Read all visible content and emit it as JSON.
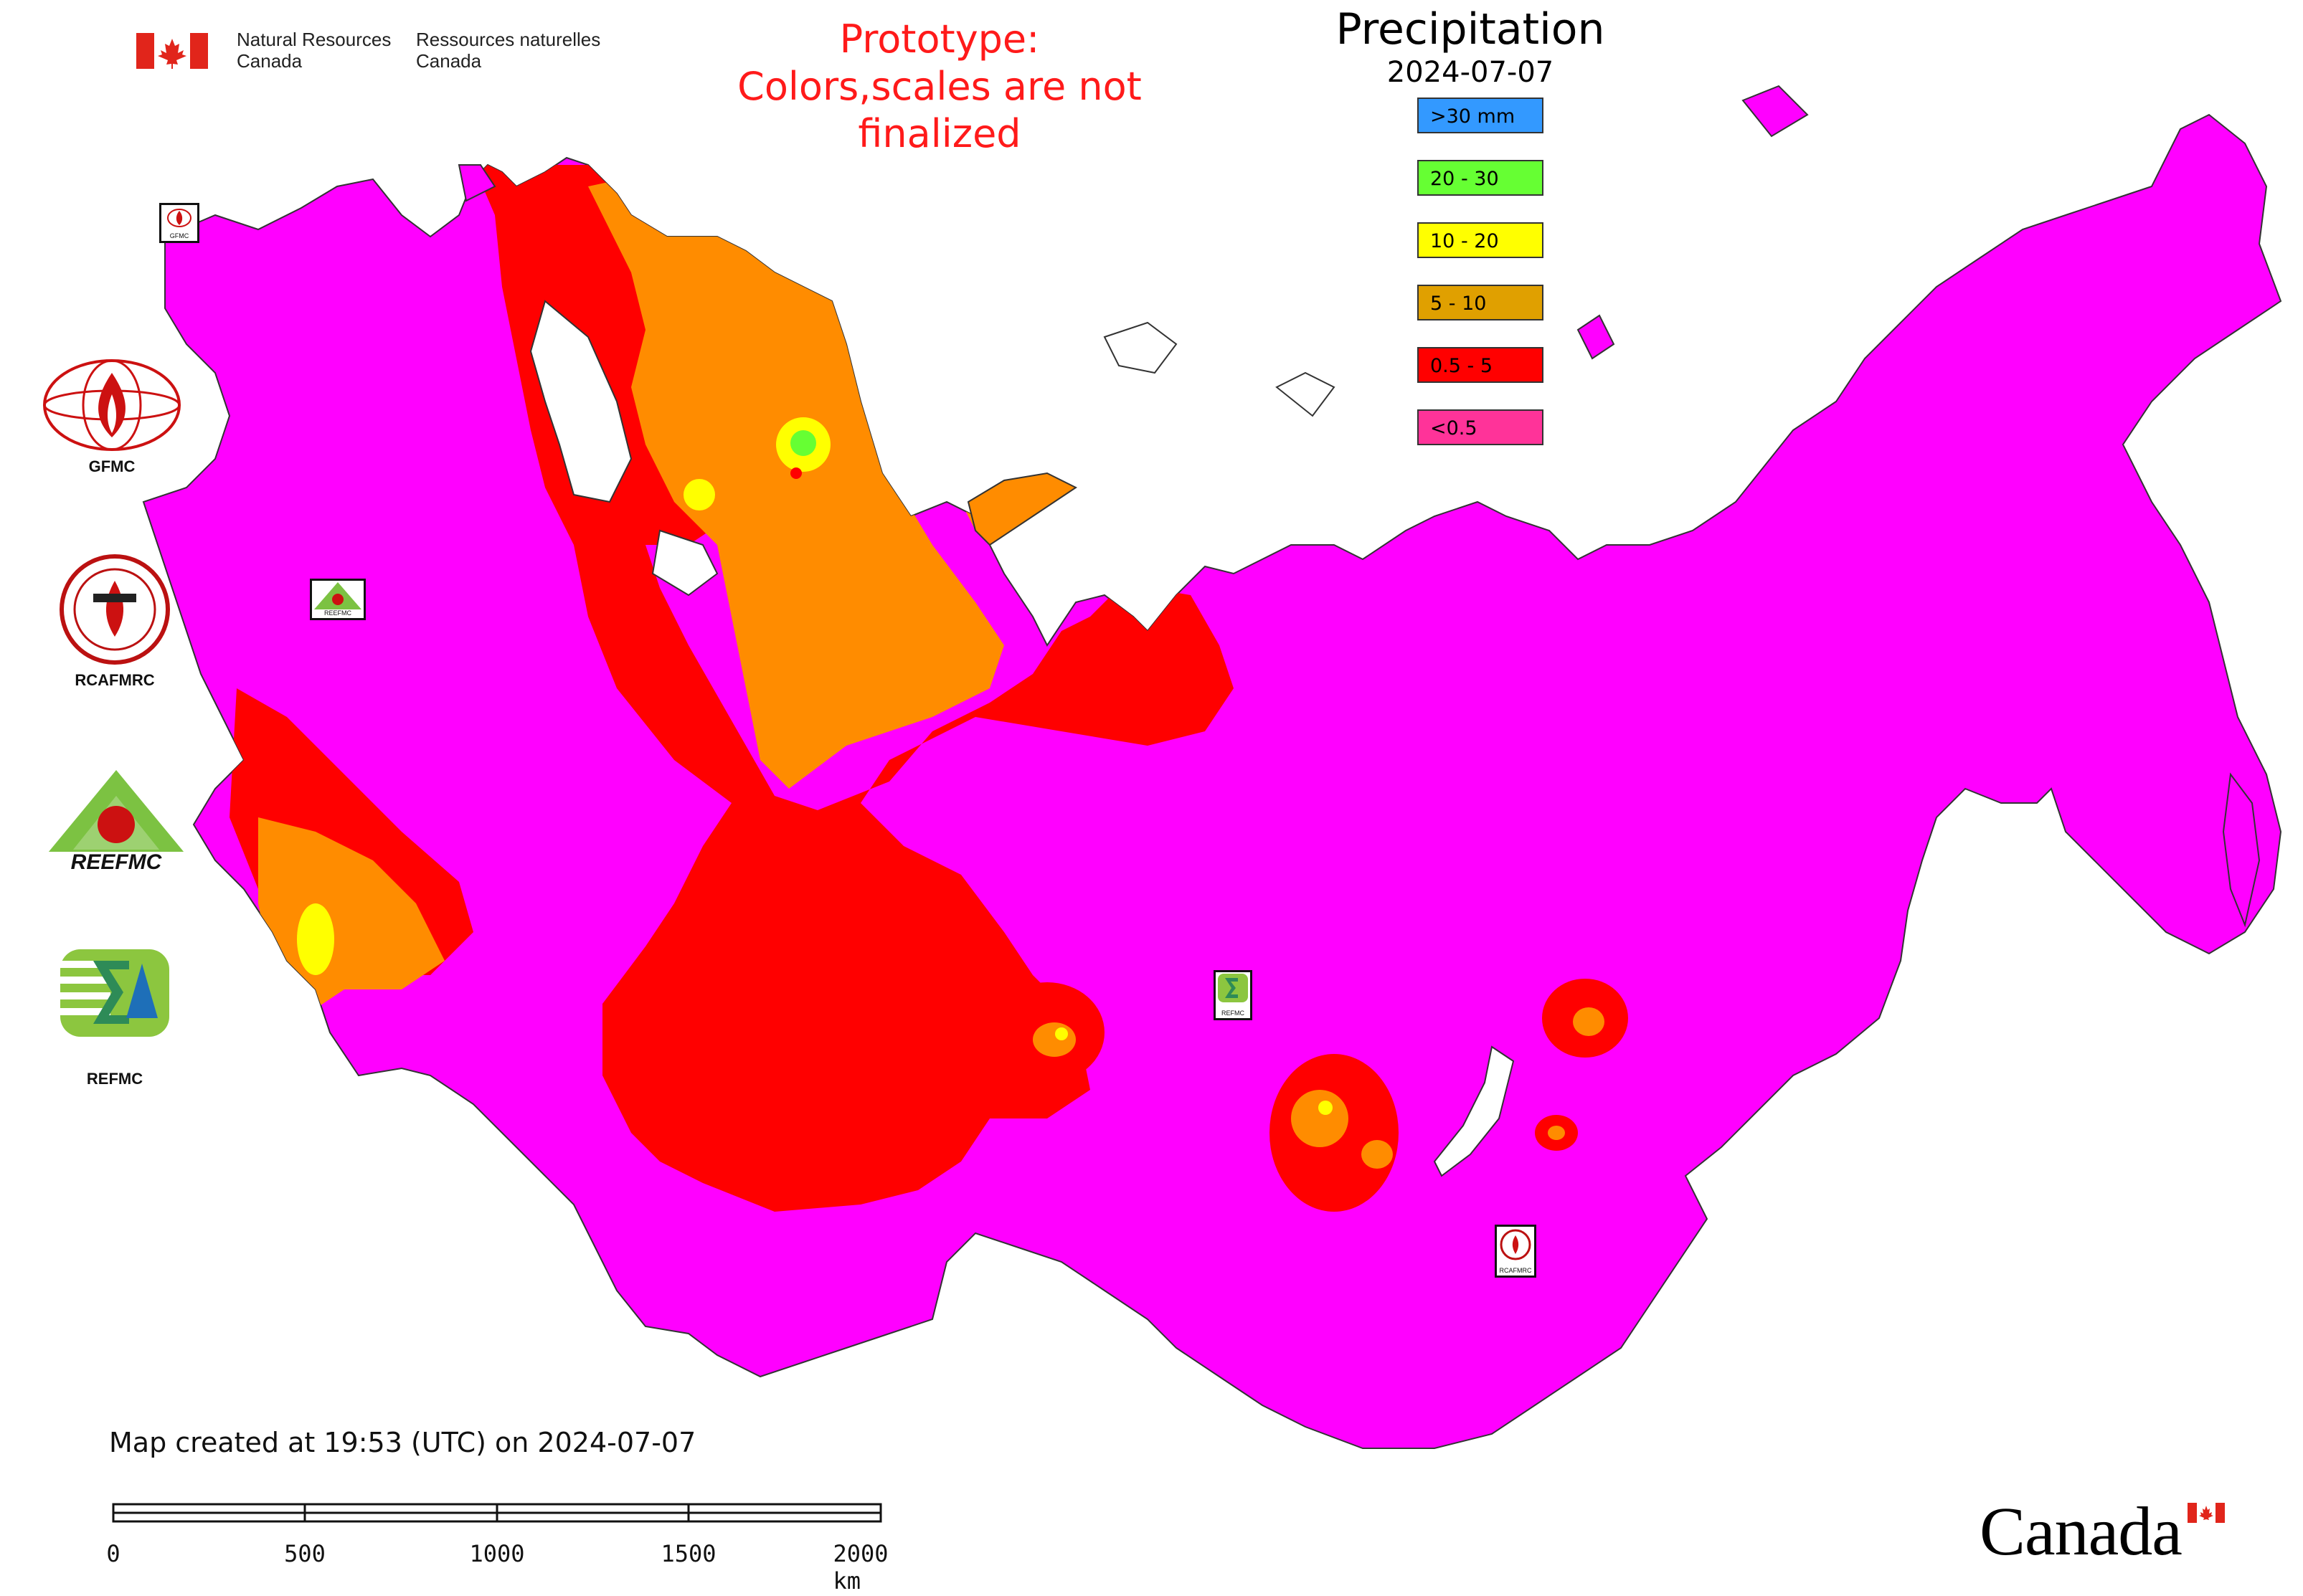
{
  "header": {
    "org_en_line1": "Natural Resources",
    "org_en_line2": "Canada",
    "org_fr_line1": "Ressources naturelles",
    "org_fr_line2": "Canada",
    "prototype_line1": "Prototype:",
    "prototype_line2": "Colors,scales are not finalized"
  },
  "legend": {
    "title": "Precipitation",
    "date": "2024-07-07",
    "items": [
      {
        "label": ">30 mm",
        "color": "#3399ff"
      },
      {
        "label": "20 - 30",
        "color": "#66ff33"
      },
      {
        "label": "10 - 20",
        "color": "#ffff00"
      },
      {
        "label": "5 - 10",
        "color": "#e0a000"
      },
      {
        "label": "0.5 - 5",
        "color": "#ff0000"
      },
      {
        "label": "<0.5",
        "color": "#ff3399"
      }
    ]
  },
  "map_colors": {
    "land_dry": "#ff00ff",
    "light": "#ff0000",
    "moderate": "#ff8c00",
    "heavy": "#ffff00",
    "very_heavy": "#66ff33",
    "water": "#ffffff"
  },
  "side_logos": [
    {
      "caption": "GFMC",
      "icon": "fire-leaf-globe-icon"
    },
    {
      "caption": "RCAFMRC",
      "icon": "rcafmrc-seal-icon"
    },
    {
      "caption": "REEFMC",
      "icon": "reefmc-triangle-icon"
    },
    {
      "caption": "REFMC",
      "icon": "refmc-sigma-icon"
    }
  ],
  "stations": [
    {
      "caption": "GFMC"
    },
    {
      "caption": "REEFMC"
    },
    {
      "caption": "REFMC"
    },
    {
      "caption": "RCAFMRC"
    }
  ],
  "footer": {
    "created": "Map created at 19:53 (UTC) on 2024-07-07",
    "scale_labels": [
      "0",
      "500",
      "1000",
      "1500",
      "2000 km"
    ],
    "wordmark": "Canada"
  }
}
